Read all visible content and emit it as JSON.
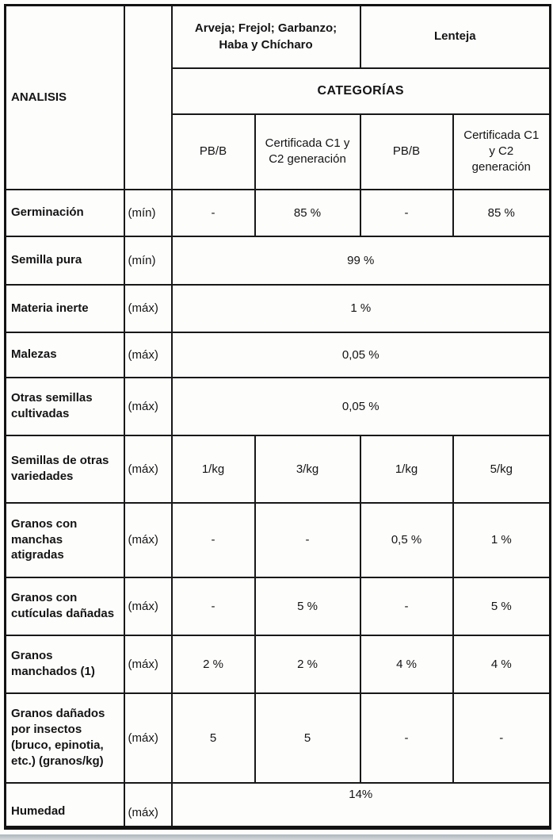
{
  "table": {
    "analysis_header": "ANALISIS",
    "species_groups": [
      {
        "label": "Arveja; Frejol; Garbanzo;\nHaba y Chícharo"
      },
      {
        "label": "Lenteja"
      }
    ],
    "categories_header": "CATEGORÍAS",
    "category_columns": [
      "PB/B",
      "Certificada C1 y\nC2 generación",
      "PB/B",
      "Certificada C1\ny C2\ngeneración"
    ],
    "rows": [
      {
        "label": "Germinación",
        "limit": "(mín)",
        "values": [
          "-",
          "85 %",
          "-",
          "85 %"
        ]
      },
      {
        "label": "Semilla pura",
        "limit": "(mín)",
        "merged_value": "99 %"
      },
      {
        "label": "Materia inerte",
        "limit": "(máx)",
        "merged_value": "1 %"
      },
      {
        "label": "Malezas",
        "limit": "(máx)",
        "merged_value": "0,05 %"
      },
      {
        "label": "Otras semillas\ncultivadas",
        "limit": "(máx)",
        "merged_value": "0,05 %"
      },
      {
        "label": "Semillas de otras\nvariedades",
        "limit": "(máx)",
        "values": [
          "1/kg",
          "3/kg",
          "1/kg",
          "5/kg"
        ]
      },
      {
        "label": "Granos con\nmanchas\natigradas",
        "limit": "(máx)",
        "values": [
          "-",
          "-",
          "0,5 %",
          "1 %"
        ]
      },
      {
        "label": "Granos con\ncutículas dañadas",
        "limit": "(máx)",
        "values": [
          "-",
          "5 %",
          "-",
          "5 %"
        ]
      },
      {
        "label": "Granos\nmanchados (1)",
        "limit": "(máx)",
        "values": [
          "2 %",
          "2 %",
          "4 %",
          "4 %"
        ]
      },
      {
        "label": "Granos dañados\npor insectos\n(bruco, epinotia,\netc.) (granos/kg)",
        "limit": "(máx)",
        "values": [
          "5",
          "5",
          "-",
          "-"
        ]
      },
      {
        "label": "Humedad",
        "limit": "(máx)",
        "merged_value": "14%"
      }
    ]
  }
}
